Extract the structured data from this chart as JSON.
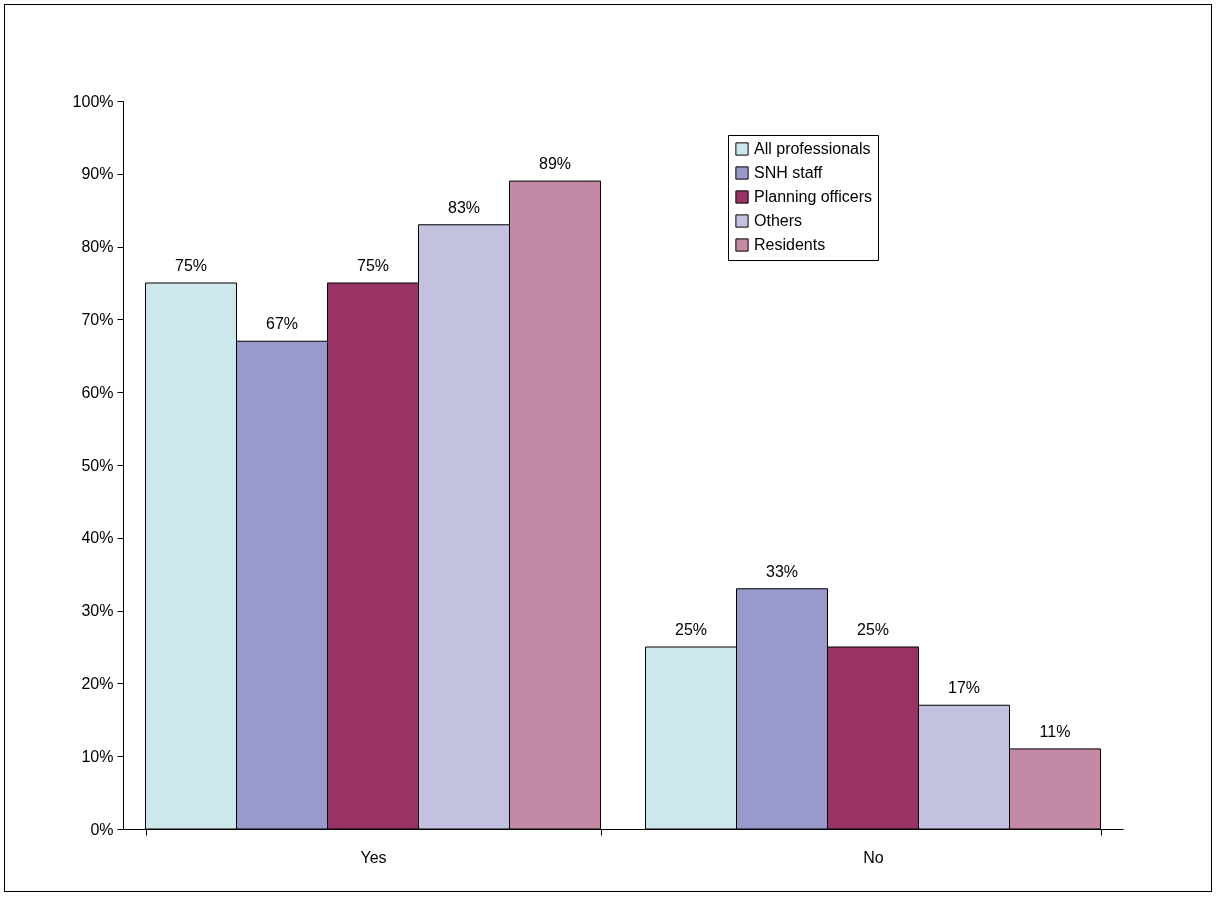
{
  "chart_data": {
    "type": "bar",
    "categories": [
      "Yes",
      "No"
    ],
    "series": [
      {
        "name": "All professionals",
        "color": "#cce8ec",
        "values": [
          75,
          25
        ],
        "value_labels": [
          "75%",
          "25%"
        ]
      },
      {
        "name": "SNH staff",
        "color": "#9999cc",
        "values": [
          67,
          33
        ],
        "value_labels": [
          "67%",
          "33%"
        ]
      },
      {
        "name": "Planning officers",
        "color": "#993366",
        "values": [
          75,
          25
        ],
        "value_labels": [
          "75%",
          "25%"
        ]
      },
      {
        "name": "Others",
        "color": "#c2c2e0",
        "values": [
          83,
          17
        ],
        "value_labels": [
          "83%",
          "17%"
        ]
      },
      {
        "name": "Residents",
        "color": "#c48aa5",
        "values": [
          89,
          11
        ],
        "value_labels": [
          "89%",
          "11%"
        ]
      }
    ],
    "ylim": [
      0,
      100
    ],
    "yticks": [
      {
        "value": 0,
        "label": "0%"
      },
      {
        "value": 10,
        "label": "10%"
      },
      {
        "value": 20,
        "label": "20%"
      },
      {
        "value": 30,
        "label": "30%"
      },
      {
        "value": 40,
        "label": "40%"
      },
      {
        "value": 50,
        "label": "50%"
      },
      {
        "value": 60,
        "label": "60%"
      },
      {
        "value": 70,
        "label": "70%"
      },
      {
        "value": 80,
        "label": "80%"
      },
      {
        "value": 90,
        "label": "90%"
      },
      {
        "value": 100,
        "label": "100%"
      }
    ],
    "grid": false,
    "legend": "top right"
  }
}
